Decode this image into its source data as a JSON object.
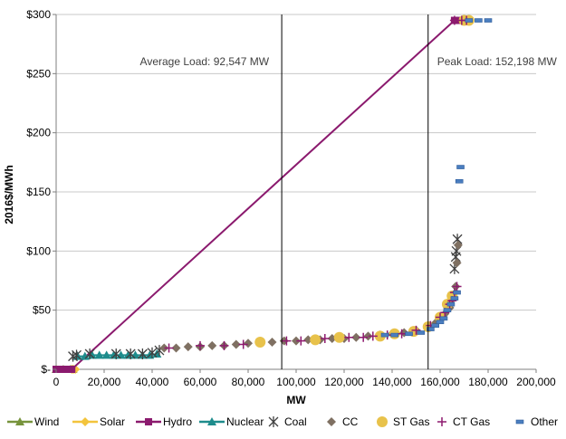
{
  "chart_data": {
    "type": "scatter",
    "title": "",
    "xlabel": "MW",
    "ylabel": "2016$/MWh",
    "xlim": [
      0,
      200000
    ],
    "ylim": [
      0,
      300
    ],
    "x_ticks": [
      0,
      20000,
      40000,
      60000,
      80000,
      100000,
      120000,
      140000,
      160000,
      180000,
      200000
    ],
    "x_tick_labels": [
      "0",
      "20,000",
      "40,000",
      "60,000",
      "80,000",
      "100,000",
      "120,000",
      "140,000",
      "160,000",
      "180,000",
      "200,000"
    ],
    "y_ticks": [
      0,
      50,
      100,
      150,
      200,
      250,
      300
    ],
    "y_tick_labels": [
      "$-",
      "$50",
      "$100",
      "$150",
      "$200",
      "$250",
      "$300"
    ],
    "grid": "horizontal",
    "legend_position": "bottom",
    "colors": {
      "Wind": "#77933c",
      "Solar": "#f3c43c",
      "Hydro": "#8b1a6e",
      "Nuclear": "#1e8c8c",
      "Coal": "#404040",
      "CC": "#7f7062",
      "ST Gas": "#e8c24b",
      "CT Gas": "#8e1a6f",
      "Other": "#4a7ec0"
    },
    "series": [
      {
        "name": "Wind",
        "marker": "triangle-line",
        "points": [
          [
            0,
            0
          ],
          [
            3000,
            0
          ],
          [
            6000,
            0
          ],
          [
            7000,
            0
          ]
        ]
      },
      {
        "name": "Solar",
        "marker": "diamond-line",
        "points": [
          [
            6500,
            0
          ],
          [
            7200,
            0
          ],
          [
            8000,
            0
          ]
        ]
      },
      {
        "name": "Hydro",
        "marker": "square-line",
        "points": [
          [
            0,
            0
          ],
          [
            1500,
            0
          ],
          [
            3000,
            0
          ],
          [
            4500,
            0
          ],
          [
            6000,
            0
          ],
          [
            6500,
            0
          ],
          [
            166000,
            295
          ],
          [
            168000,
            295
          ],
          [
            170000,
            295
          ]
        ]
      },
      {
        "name": "Nuclear",
        "marker": "triangle-line",
        "points": [
          [
            9000,
            11
          ],
          [
            12000,
            11
          ],
          [
            15000,
            12
          ],
          [
            18000,
            12
          ],
          [
            21000,
            12
          ],
          [
            24000,
            12
          ],
          [
            27000,
            12
          ],
          [
            30000,
            12
          ],
          [
            33000,
            12
          ],
          [
            36000,
            12
          ],
          [
            39000,
            12
          ],
          [
            42000,
            13
          ]
        ]
      },
      {
        "name": "Coal",
        "marker": "star",
        "points": [
          [
            7000,
            11
          ],
          [
            8500,
            12
          ],
          [
            14000,
            13
          ],
          [
            25000,
            13
          ],
          [
            31000,
            13
          ],
          [
            36000,
            13
          ],
          [
            40000,
            14
          ],
          [
            43000,
            16
          ],
          [
            166000,
            85
          ],
          [
            166500,
            95
          ],
          [
            166800,
            100
          ],
          [
            167200,
            110
          ]
        ]
      },
      {
        "name": "CC",
        "marker": "diamond",
        "points": [
          [
            45000,
            18
          ],
          [
            50000,
            18
          ],
          [
            55000,
            19
          ],
          [
            60000,
            19
          ],
          [
            65000,
            20
          ],
          [
            70000,
            20
          ],
          [
            75000,
            21
          ],
          [
            80000,
            22
          ],
          [
            85000,
            23
          ],
          [
            90000,
            23
          ],
          [
            95000,
            24
          ],
          [
            100000,
            24
          ],
          [
            105000,
            25
          ],
          [
            110000,
            25
          ],
          [
            115000,
            26
          ],
          [
            120000,
            26
          ],
          [
            125000,
            27
          ],
          [
            130000,
            28
          ],
          [
            135000,
            29
          ],
          [
            140000,
            30
          ],
          [
            145000,
            31
          ],
          [
            150000,
            33
          ],
          [
            155000,
            36
          ],
          [
            158000,
            39
          ],
          [
            160000,
            42
          ],
          [
            162000,
            47
          ],
          [
            164000,
            52
          ],
          [
            165500,
            60
          ],
          [
            166500,
            70
          ],
          [
            167000,
            90
          ],
          [
            167500,
            105
          ]
        ]
      },
      {
        "name": "ST Gas",
        "marker": "circle",
        "points": [
          [
            85000,
            23
          ],
          [
            108000,
            25
          ],
          [
            118000,
            27
          ],
          [
            135000,
            28
          ],
          [
            141000,
            30
          ],
          [
            149000,
            32
          ],
          [
            155000,
            36
          ],
          [
            160000,
            44
          ],
          [
            163000,
            55
          ],
          [
            165000,
            62
          ],
          [
            170000,
            295
          ],
          [
            172000,
            295
          ]
        ]
      },
      {
        "name": "CT Gas",
        "marker": "plus",
        "points": [
          [
            47000,
            18
          ],
          [
            60000,
            20
          ],
          [
            70000,
            20
          ],
          [
            78000,
            21
          ],
          [
            96000,
            24
          ],
          [
            102000,
            24
          ],
          [
            112000,
            26
          ],
          [
            122000,
            27
          ],
          [
            128000,
            27
          ],
          [
            132000,
            28
          ],
          [
            138000,
            29
          ],
          [
            144000,
            30
          ],
          [
            150000,
            33
          ],
          [
            156000,
            37
          ],
          [
            160000,
            44
          ],
          [
            162000,
            48
          ],
          [
            164000,
            55
          ],
          [
            165000,
            58
          ],
          [
            166000,
            65
          ],
          [
            167000,
            70
          ],
          [
            166000,
            295
          ],
          [
            169000,
            295
          ],
          [
            171000,
            295
          ]
        ]
      },
      {
        "name": "Other",
        "marker": "dash",
        "points": [
          [
            137000,
            29
          ],
          [
            141000,
            29
          ],
          [
            147000,
            30
          ],
          [
            152000,
            31
          ],
          [
            156000,
            34
          ],
          [
            158000,
            37
          ],
          [
            160000,
            40
          ],
          [
            161500,
            43
          ],
          [
            163000,
            50
          ],
          [
            164500,
            55
          ],
          [
            166000,
            60
          ],
          [
            167000,
            65
          ],
          [
            168000,
            159
          ],
          [
            168500,
            171
          ],
          [
            172000,
            295
          ],
          [
            176000,
            295
          ],
          [
            180000,
            295
          ]
        ]
      }
    ],
    "annotations": [
      {
        "text": "Average Load: 92,547 MW",
        "x": 94000
      },
      {
        "text": "Peak Load: 152,198 MW",
        "x": 155000
      }
    ]
  }
}
